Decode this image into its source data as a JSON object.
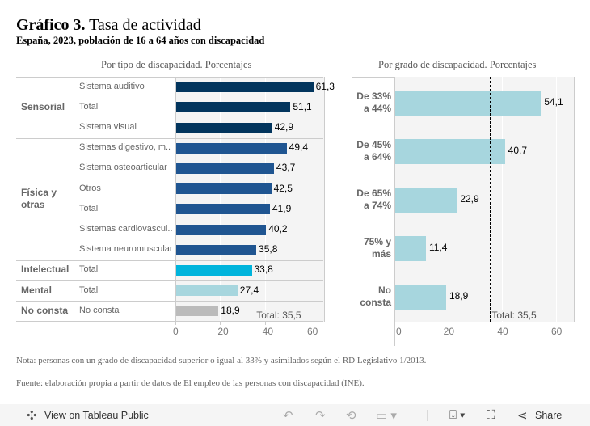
{
  "title": {
    "bold": "Gráfico 3.",
    "rest": "Tasa de actividad"
  },
  "subtitle": "España, 2023, población de 16 a 64 años con discapacidad",
  "chart_data": [
    {
      "type": "bar",
      "title": "Por tipo de discapacidad. Porcentajes",
      "xlim": [
        0,
        66
      ],
      "xticks": [
        "0",
        "20",
        "40",
        "60"
      ],
      "reference": {
        "value": 35.5,
        "label": "Total: 35,5"
      },
      "groups": [
        {
          "name": "Sensorial",
          "color": "#02355d",
          "items": [
            {
              "label": "Sistema auditivo",
              "value": 61.3,
              "text": "61,3"
            },
            {
              "label": "Total",
              "value": 51.1,
              "text": "51,1"
            },
            {
              "label": "Sistema visual",
              "value": 42.9,
              "text": "42,9"
            }
          ]
        },
        {
          "name": "Física y otras",
          "color": "#1f5591",
          "items": [
            {
              "label": "Sistemas digestivo, m..",
              "value": 49.4,
              "text": "49,4"
            },
            {
              "label": "Sistema osteoarticular",
              "value": 43.7,
              "text": "43,7"
            },
            {
              "label": "Otros",
              "value": 42.5,
              "text": "42,5"
            },
            {
              "label": "Total",
              "value": 41.9,
              "text": "41,9"
            },
            {
              "label": "Sistemas cardiovascul..",
              "value": 40.2,
              "text": "40,2"
            },
            {
              "label": "Sistema neuromuscular",
              "value": 35.8,
              "text": "35,8"
            }
          ]
        },
        {
          "name": "Intelectual",
          "color": "#00b4dc",
          "items": [
            {
              "label": "Total",
              "value": 33.8,
              "text": "33,8"
            }
          ]
        },
        {
          "name": "Mental",
          "color": "#a7d6de",
          "items": [
            {
              "label": "Total",
              "value": 27.4,
              "text": "27,4"
            }
          ]
        },
        {
          "name": "No consta",
          "color": "#bbbbbb",
          "items": [
            {
              "label": "No consta",
              "value": 18.9,
              "text": "18,9"
            }
          ]
        }
      ]
    },
    {
      "type": "bar",
      "title": "Por grado de discapacidad. Porcentajes",
      "xlim": [
        0,
        66
      ],
      "xticks": [
        "0",
        "20",
        "40",
        "60"
      ],
      "color": "#a7d6de",
      "reference": {
        "value": 35.5,
        "label": "Total: 35,5"
      },
      "categories": [
        "De 33% a 44%",
        "De 45% a 64%",
        "De 65% a 74%",
        "75% y más",
        "No consta"
      ],
      "values": [
        54.1,
        40.7,
        22.9,
        11.4,
        18.9
      ],
      "texts": [
        "54,1",
        "40,7",
        "22,9",
        "11,4",
        "18,9"
      ]
    }
  ],
  "notes": {
    "nota": "Nota: personas con un grado de discapacidad superior o igual al 33% y asimilados según el RD Legislativo 1/2013.",
    "fuente": "Fuente: elaboración propia a partir de datos de El empleo de las personas con discapacidad (INE)."
  },
  "footer": {
    "view": "View on Tableau Public",
    "share": "Share"
  }
}
